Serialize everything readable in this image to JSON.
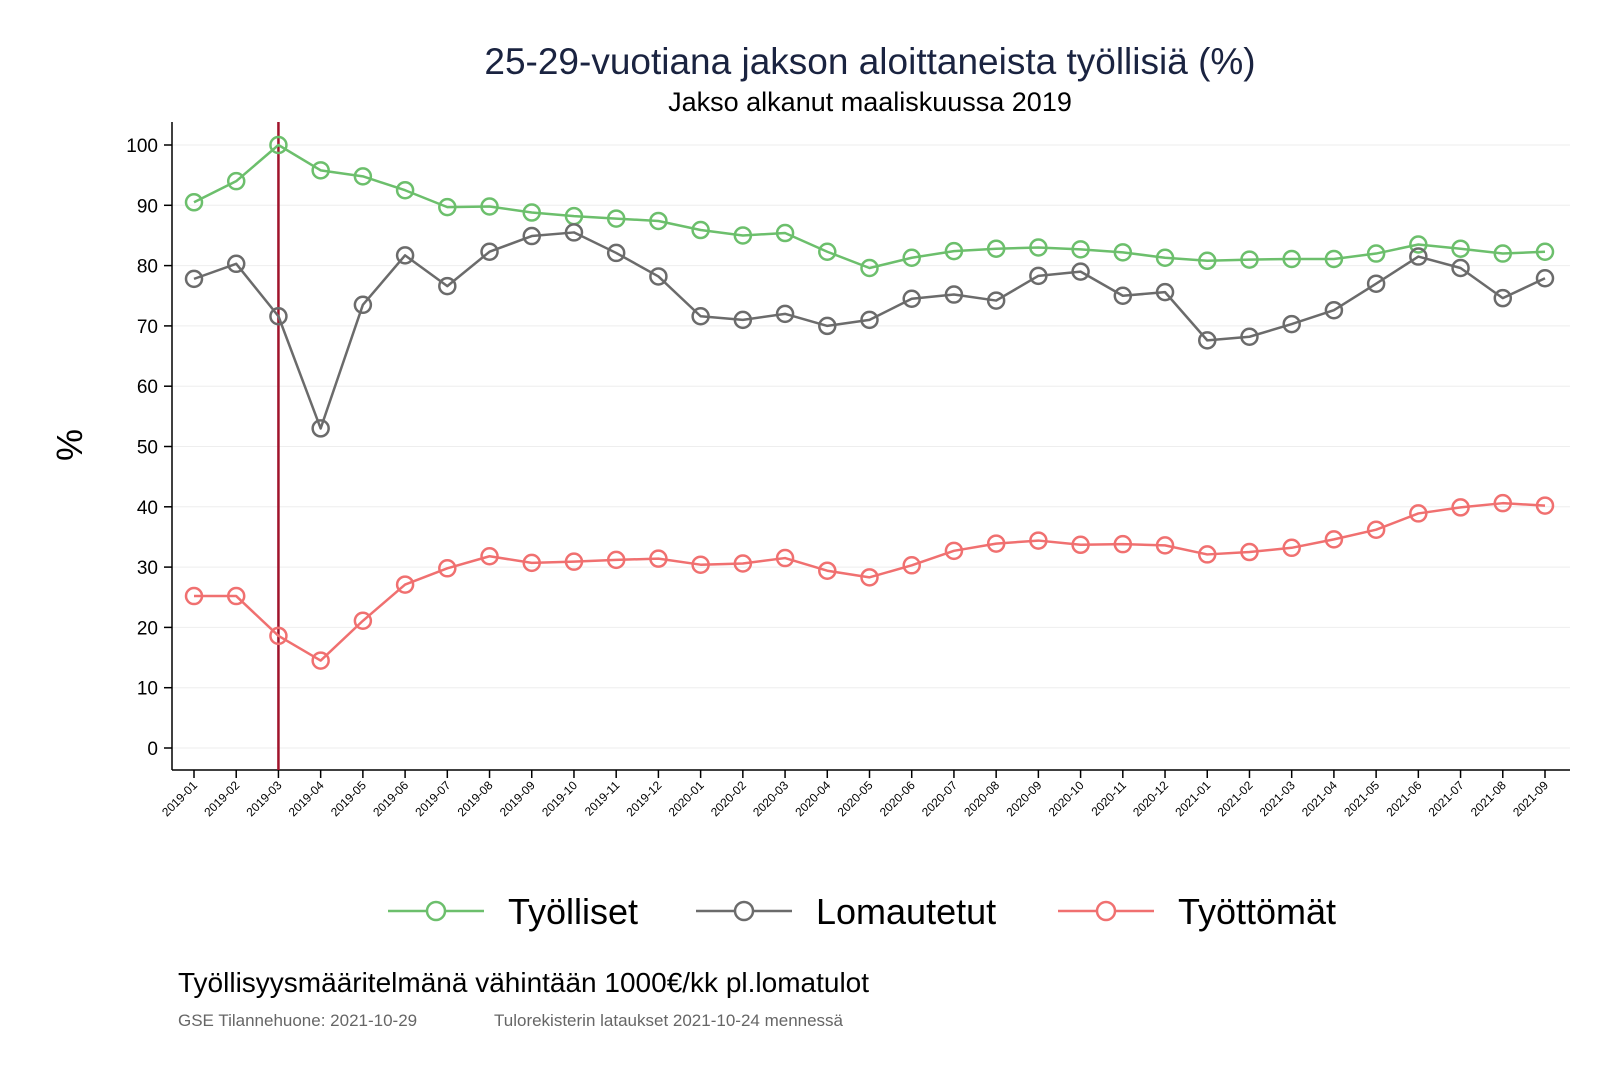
{
  "chart_data": {
    "type": "line",
    "title": "25-29-vuotiana jakson aloittaneista työllisiä (%)",
    "subtitle": "Jakso alkanut maaliskuussa 2019",
    "ylabel": "%",
    "xlabel": "",
    "ylim": [
      0,
      100
    ],
    "yticks": [
      0,
      10,
      20,
      30,
      40,
      50,
      60,
      70,
      80,
      90,
      100
    ],
    "grid": true,
    "legend_position": "bottom",
    "reference_line": {
      "x": "2019-03",
      "color": "#a0132b"
    },
    "categories": [
      "2019-01",
      "2019-02",
      "2019-03",
      "2019-04",
      "2019-05",
      "2019-06",
      "2019-07",
      "2019-08",
      "2019-09",
      "2019-10",
      "2019-11",
      "2019-12",
      "2020-01",
      "2020-02",
      "2020-03",
      "2020-04",
      "2020-05",
      "2020-06",
      "2020-07",
      "2020-08",
      "2020-09",
      "2020-10",
      "2020-11",
      "2020-12",
      "2021-01",
      "2021-02",
      "2021-03",
      "2021-04",
      "2021-05",
      "2021-06",
      "2021-07",
      "2021-08",
      "2021-09"
    ],
    "series": [
      {
        "name": "Työlliset",
        "color": "#6cbf6c",
        "values": [
          90.5,
          94,
          100,
          95.8,
          94.8,
          92.5,
          89.7,
          89.8,
          88.8,
          88.2,
          87.8,
          87.4,
          85.9,
          85,
          85.4,
          82.3,
          79.6,
          81.3,
          82.4,
          82.8,
          83,
          82.7,
          82.2,
          81.3,
          80.8,
          81,
          81.1,
          81.1,
          82,
          83.5,
          82.8,
          82,
          82.3
        ]
      },
      {
        "name": "Lomautetut",
        "color": "#6b6b6b",
        "values": [
          77.8,
          80.3,
          71.6,
          53,
          73.5,
          81.7,
          76.6,
          82.3,
          84.9,
          85.5,
          82.1,
          78.2,
          71.6,
          71,
          72,
          70,
          71,
          74.5,
          75.2,
          74.2,
          78.3,
          79,
          75,
          75.6,
          67.6,
          68.2,
          70.3,
          72.6,
          77,
          81.5,
          79.6,
          74.6,
          77.9
        ]
      },
      {
        "name": "Työttömät",
        "color": "#f07070",
        "values": [
          25.2,
          25.2,
          18.6,
          14.5,
          21.1,
          27.1,
          29.8,
          31.8,
          30.7,
          30.9,
          31.2,
          31.4,
          30.4,
          30.6,
          31.5,
          29.4,
          28.3,
          30.3,
          32.7,
          33.9,
          34.4,
          33.7,
          33.8,
          33.6,
          32.1,
          32.5,
          33.2,
          34.6,
          36.2,
          38.9,
          39.9,
          40.6,
          40.2
        ]
      }
    ]
  },
  "note": "Työllisyysmääritelmänä vähintään 1000€/kk pl.lomatulot",
  "source_left": "GSE Tilannehuone: 2021-10-29",
  "source_right": "Tulorekisterin lataukset 2021-10-24 mennessä"
}
